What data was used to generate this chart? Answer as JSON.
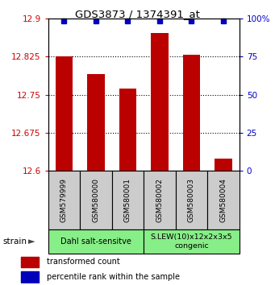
{
  "title": "GDS3873 / 1374391_at",
  "samples": [
    "GSM579999",
    "GSM580000",
    "GSM580001",
    "GSM580002",
    "GSM580003",
    "GSM580004"
  ],
  "transformed_counts": [
    12.825,
    12.79,
    12.762,
    12.872,
    12.828,
    12.624
  ],
  "percentile_ranks": [
    99,
    99,
    99,
    99,
    99,
    99
  ],
  "y_min": 12.6,
  "y_max": 12.9,
  "y_ticks": [
    12.6,
    12.675,
    12.75,
    12.825,
    12.9
  ],
  "y_tick_labels": [
    "12.6",
    "12.675",
    "12.75",
    "12.825",
    "12.9"
  ],
  "right_y_ticks": [
    0,
    25,
    50,
    75,
    100
  ],
  "right_y_labels": [
    "0",
    "25",
    "50",
    "75",
    "100%"
  ],
  "bar_color": "#bb0000",
  "dot_color": "#0000bb",
  "group1_label": "Dahl salt-sensitve",
  "group2_label": "S.LEW(10)x12x2x3x5\ncongenic",
  "group_color": "#88ee88",
  "xlabel_strain": "strain",
  "legend_bar": "transformed count",
  "legend_dot": "percentile rank within the sample",
  "grid_yticks": [
    12.675,
    12.75,
    12.825
  ],
  "bar_width": 0.55
}
